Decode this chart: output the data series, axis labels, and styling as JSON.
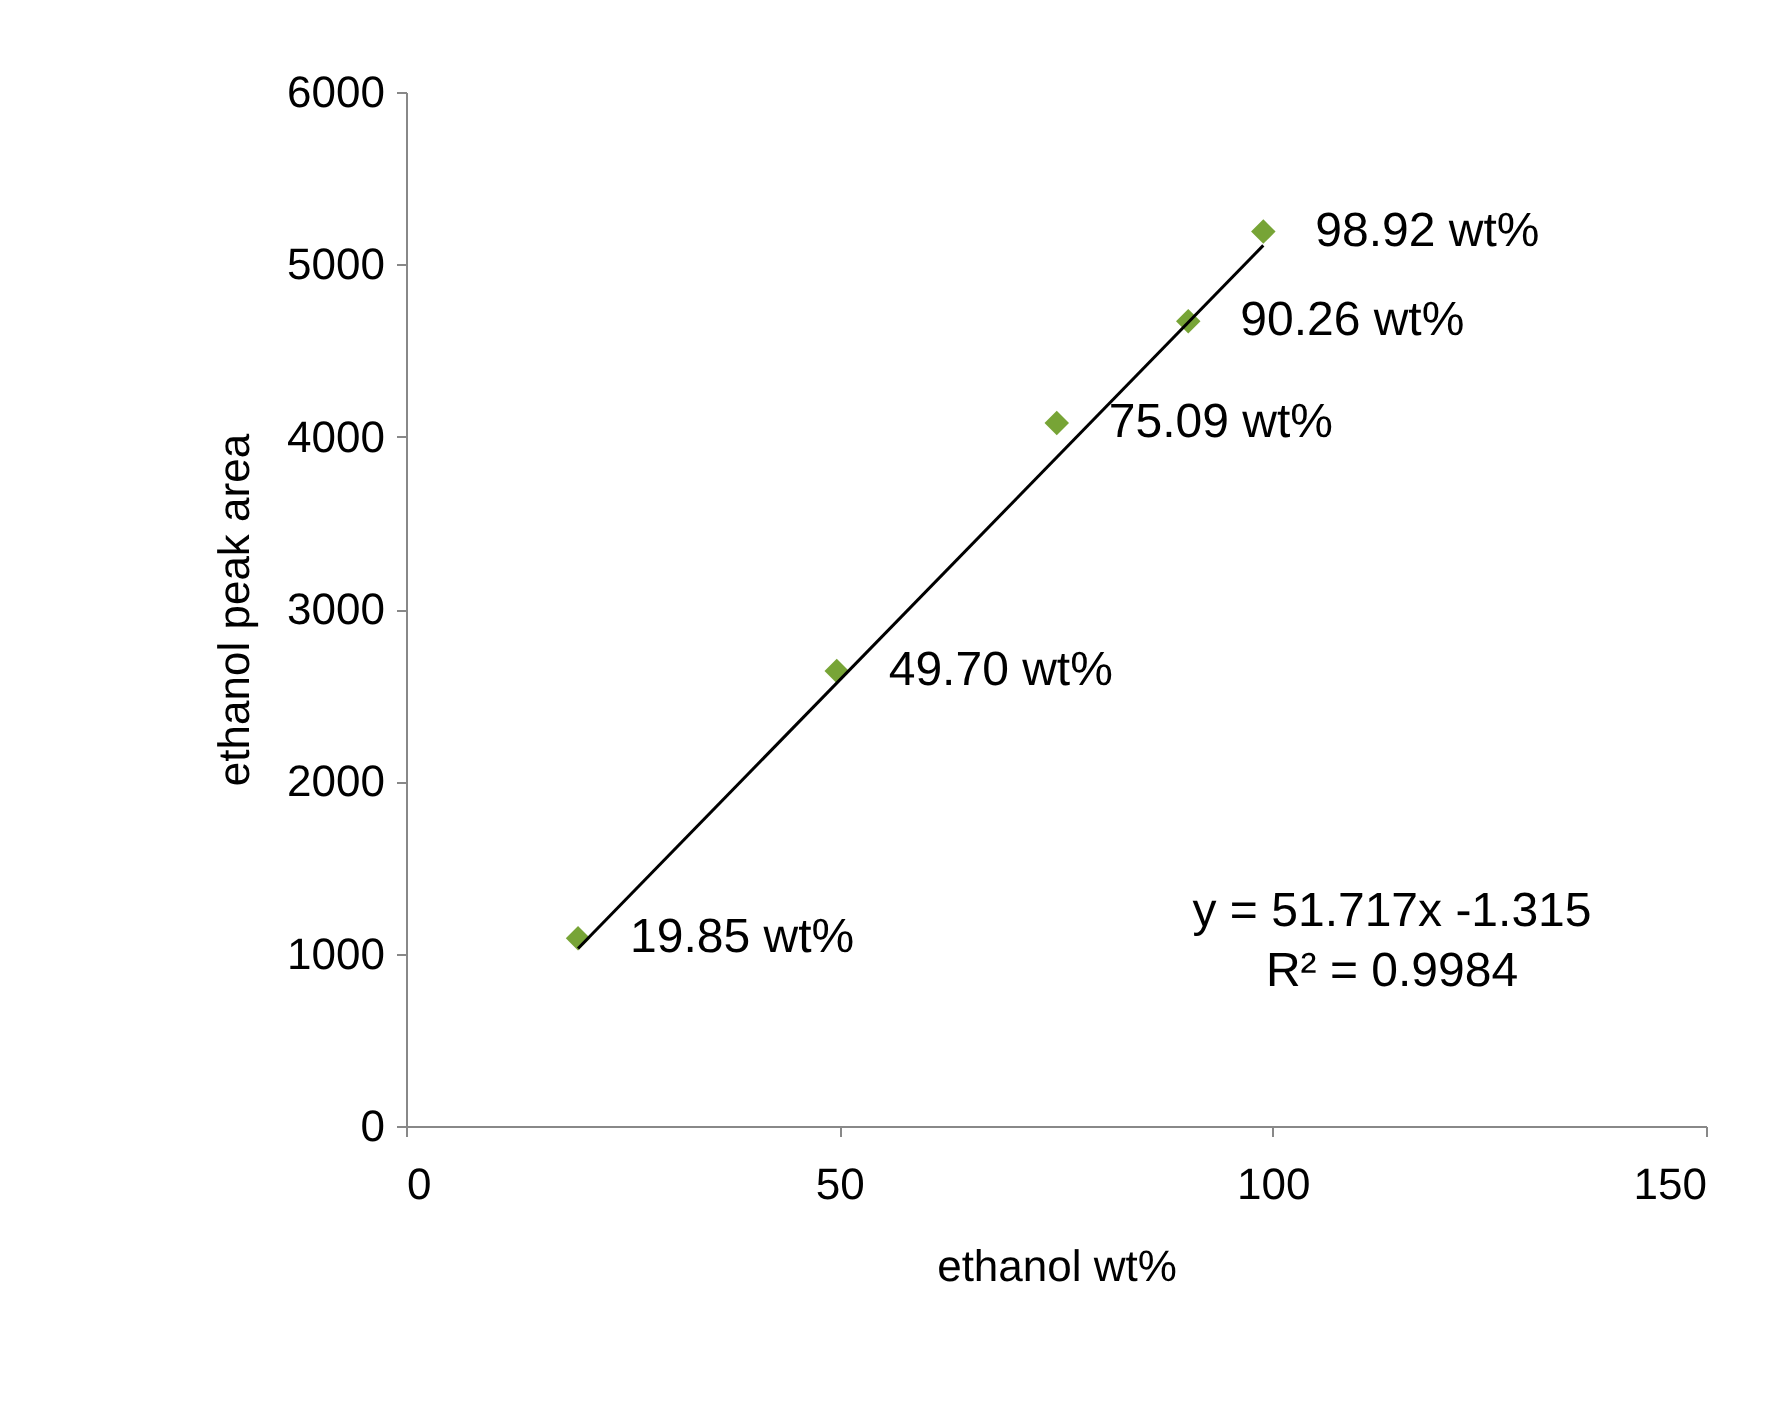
{
  "chart_data": {
    "type": "scatter",
    "xlabel": "ethanol wt%",
    "ylabel": "ethanol peak area",
    "xlim": [
      0,
      150
    ],
    "ylim": [
      0,
      6000
    ],
    "xticks": [
      0,
      50,
      100,
      150
    ],
    "yticks": [
      0,
      1000,
      2000,
      3000,
      4000,
      5000,
      6000
    ],
    "grid": false,
    "series": [
      {
        "marker": "diamond",
        "color": "#77a436",
        "x": [
          19.85,
          49.7,
          75.09,
          90.26,
          98.92
        ],
        "values": [
          1090,
          2640,
          4080,
          4670,
          5190
        ]
      },
      {
        "type": "line",
        "marker": "none",
        "color": "#000000",
        "x": [
          19.85,
          98.92
        ],
        "values": [
          1030,
          5110
        ]
      }
    ],
    "annotations": [
      {
        "text": "19.85 wt%",
        "x": 19.85,
        "y": 1090
      },
      {
        "text": "49.70 wt%",
        "x": 49.7,
        "y": 2640
      },
      {
        "text": "75.09 wt%",
        "x": 75.09,
        "y": 4080
      },
      {
        "text": "90.26 wt%",
        "x": 90.26,
        "y": 4670
      },
      {
        "text": "98.92 wt%",
        "x": 98.92,
        "y": 5190
      },
      "y = 51.717x -1.315",
      "R² = 0.9984"
    ]
  }
}
